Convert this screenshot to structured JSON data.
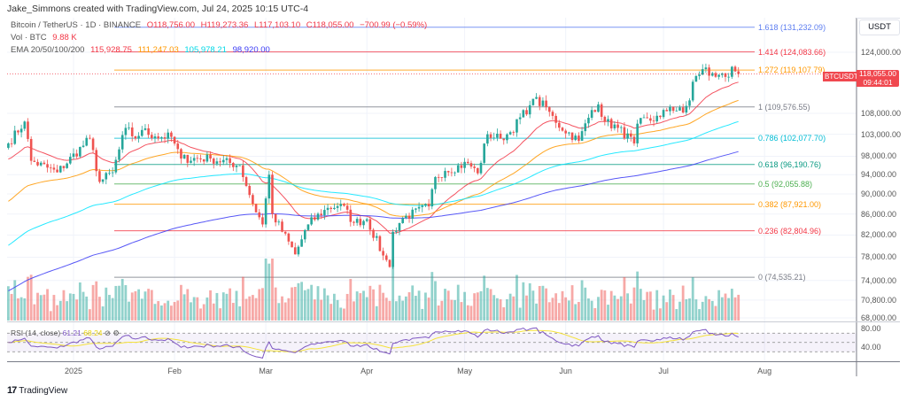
{
  "header": {
    "credit": "Jake_Simmons created with TradingView.com, Jul 24, 2025 10:15 UTC-4"
  },
  "legend": {
    "symbol": "Bitcoin / TetherUS · 1D · BINANCE",
    "open": "O118,756.00",
    "high": "H119,273.36",
    "low": "L117,103.10",
    "close": "C118,055.00",
    "change": "−700.99 (−0.59%)",
    "vol_label": "Vol · BTC",
    "vol_value": "9.88 K",
    "ema_label": "EMA 20/50/100/200",
    "ema20": "115,928.75",
    "ema50": "111,247.03",
    "ema100": "105,978.21",
    "ema200": "98,920.00"
  },
  "axis": {
    "currency": "USDT",
    "symbol_tag": "BTCUSDT",
    "last_price": "118,055.00",
    "countdown": "09:44:01",
    "rsi_legend": "RSI (14, close)",
    "rsi_value": "61.21",
    "rsi_ma_value": "68.24"
  },
  "footer": {
    "brand": "TradingView"
  },
  "colors": {
    "up": "#26a69a",
    "down": "#ef5350",
    "ema20": "#f23645",
    "ema50": "#ff9800",
    "ema100": "#00e5ff",
    "ema200": "#3b3bf5",
    "rsi": "#7e57c2",
    "rsi_ma": "#f5e23a"
  },
  "chart_data": {
    "type": "candlestick",
    "scale": "log",
    "y_ticks": [
      {
        "value": 124000,
        "label": "124,000.00"
      },
      {
        "value": 108000,
        "label": "108,000.00"
      },
      {
        "value": 103000,
        "label": "103,000.00"
      },
      {
        "value": 98000,
        "label": "98,000.00"
      },
      {
        "value": 94000,
        "label": "94,000.00"
      },
      {
        "value": 90000,
        "label": "90,000.00"
      },
      {
        "value": 86000,
        "label": "86,000.00"
      },
      {
        "value": 82000,
        "label": "82,000.00"
      },
      {
        "value": 78000,
        "label": "78,000.00"
      },
      {
        "value": 74000,
        "label": "74,000.00"
      },
      {
        "value": 70800,
        "label": "70,800.00"
      },
      {
        "value": 68000,
        "label": "68,000.00"
      }
    ],
    "rsi_ticks": [
      {
        "value": 80,
        "label": "80.00"
      },
      {
        "value": 40,
        "label": "40.00"
      }
    ],
    "x_ticks": [
      {
        "date": "2025-01-01",
        "label": "2025"
      },
      {
        "date": "2025-02-01",
        "label": "Feb"
      },
      {
        "date": "2025-03-01",
        "label": "Mar"
      },
      {
        "date": "2025-04-01",
        "label": "Apr"
      },
      {
        "date": "2025-05-01",
        "label": "May"
      },
      {
        "date": "2025-06-01",
        "label": "Jun"
      },
      {
        "date": "2025-07-01",
        "label": "Jul"
      },
      {
        "date": "2025-08-01",
        "label": "Aug"
      }
    ],
    "fib_levels": [
      {
        "ratio": "1.618",
        "price": 131232.09,
        "label": "1.618 (131,232.09)",
        "color": "#5b7cf0"
      },
      {
        "ratio": "1.414",
        "price": 124083.66,
        "label": "1.414 (124,083.66)",
        "color": "#f23645"
      },
      {
        "ratio": "1.272",
        "price": 119107.79,
        "label": "1.272 (119,107.79)",
        "color": "#ff9800"
      },
      {
        "ratio": "1",
        "price": 109576.55,
        "label": "1 (109,576.55)",
        "color": "#787b86"
      },
      {
        "ratio": "0.786",
        "price": 102077.7,
        "label": "0.786 (102,077.70)",
        "color": "#00bcd4"
      },
      {
        "ratio": "0.618",
        "price": 96190.76,
        "label": "0.618 (96,190.76)",
        "color": "#089981"
      },
      {
        "ratio": "0.5",
        "price": 92055.88,
        "label": "0.5 (92,055.88)",
        "color": "#4caf50"
      },
      {
        "ratio": "0.382",
        "price": 87921.0,
        "label": "0.382 (87,921.00)",
        "color": "#ff9800"
      },
      {
        "ratio": "0.236",
        "price": 82804.96,
        "label": "0.236 (82,804.96)",
        "color": "#f23645"
      },
      {
        "ratio": "0",
        "price": 74535.21,
        "label": "0 (74,535.21)",
        "color": "#787b86"
      }
    ],
    "closes": [
      [
        "2024-12-12",
        100900
      ],
      [
        "2024-12-17",
        106000
      ],
      [
        "2024-12-19",
        97000
      ],
      [
        "2024-12-27",
        94500
      ],
      [
        "2025-01-06",
        102000
      ],
      [
        "2025-01-09",
        92500
      ],
      [
        "2025-01-13",
        94500
      ],
      [
        "2025-01-17",
        104500
      ],
      [
        "2025-01-20",
        102000
      ],
      [
        "2025-01-22",
        104000
      ],
      [
        "2025-01-26",
        102500
      ],
      [
        "2025-01-31",
        102400
      ],
      [
        "2025-02-03",
        97500
      ],
      [
        "2025-02-12",
        97500
      ],
      [
        "2025-02-21",
        96000
      ],
      [
        "2025-02-25",
        88000
      ],
      [
        "2025-02-28",
        84000
      ],
      [
        "2025-03-02",
        94000
      ],
      [
        "2025-03-03",
        86000
      ],
      [
        "2025-03-10",
        78500
      ],
      [
        "2025-03-14",
        84000
      ],
      [
        "2025-03-19",
        86800
      ],
      [
        "2025-03-24",
        88000
      ],
      [
        "2025-03-28",
        84300
      ],
      [
        "2025-04-01",
        85000
      ],
      [
        "2025-04-06",
        78300
      ],
      [
        "2025-04-08",
        76300
      ],
      [
        "2025-04-09",
        82600
      ],
      [
        "2025-04-12",
        85200
      ],
      [
        "2025-04-20",
        87500
      ],
      [
        "2025-04-22",
        93500
      ],
      [
        "2025-04-25",
        94800
      ],
      [
        "2025-05-02",
        96500
      ],
      [
        "2025-05-05",
        94300
      ],
      [
        "2025-05-08",
        103000
      ],
      [
        "2025-05-12",
        102000
      ],
      [
        "2025-05-15",
        103500
      ],
      [
        "2025-05-21",
        110000
      ],
      [
        "2025-05-22",
        111600
      ],
      [
        "2025-05-26",
        109500
      ],
      [
        "2025-05-29",
        105700
      ],
      [
        "2025-06-05",
        101500
      ],
      [
        "2025-06-09",
        108800
      ],
      [
        "2025-06-11",
        110200
      ],
      [
        "2025-06-13",
        106000
      ],
      [
        "2025-06-17",
        104500
      ],
      [
        "2025-06-22",
        100900
      ],
      [
        "2025-06-23",
        105500
      ],
      [
        "2025-06-30",
        107100
      ],
      [
        "2025-07-03",
        109600
      ],
      [
        "2025-07-07",
        108200
      ],
      [
        "2025-07-09",
        111200
      ],
      [
        "2025-07-10",
        116000
      ],
      [
        "2025-07-11",
        117500
      ],
      [
        "2025-07-14",
        119800
      ],
      [
        "2025-07-15",
        117600
      ],
      [
        "2025-07-18",
        117800
      ],
      [
        "2025-07-21",
        117300
      ],
      [
        "2025-07-22",
        120000
      ],
      [
        "2025-07-23",
        118756
      ],
      [
        "2025-07-24",
        118055
      ]
    ]
  }
}
